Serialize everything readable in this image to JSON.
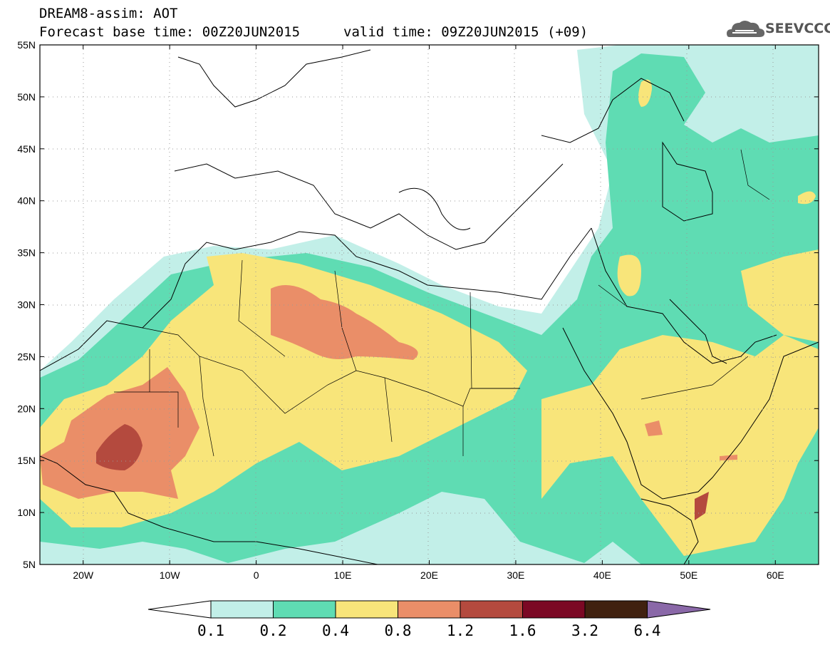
{
  "header": {
    "line1": "DREAM8-assim: AOT",
    "line2": "Forecast base time: 00Z20JUN2015",
    "line3": "valid time: 09Z20JUN2015 (+09)",
    "logo_text": "SEEVCCC",
    "logo_icon": "cloud-icon"
  },
  "map": {
    "lon_range": [
      -25,
      65
    ],
    "lat_range": [
      5,
      55
    ],
    "lat_labels": [
      "55N",
      "50N",
      "45N",
      "40N",
      "35N",
      "30N",
      "25N",
      "20N",
      "15N",
      "10N",
      "5N"
    ],
    "lon_labels": [
      "20W",
      "10W",
      "0",
      "10E",
      "20E",
      "30E",
      "40E",
      "50E",
      "60E"
    ],
    "grid": "dotted"
  },
  "colorbar": {
    "levels": [
      "0.1",
      "0.2",
      "0.4",
      "0.8",
      "1.2",
      "1.6",
      "3.2",
      "6.4"
    ],
    "colors": [
      "#ffffff",
      "#c2efe8",
      "#5fdcb3",
      "#f8e57a",
      "#ea8e68",
      "#b44a3e",
      "#7b0824",
      "#40210f",
      "#8a68a8"
    ]
  }
}
